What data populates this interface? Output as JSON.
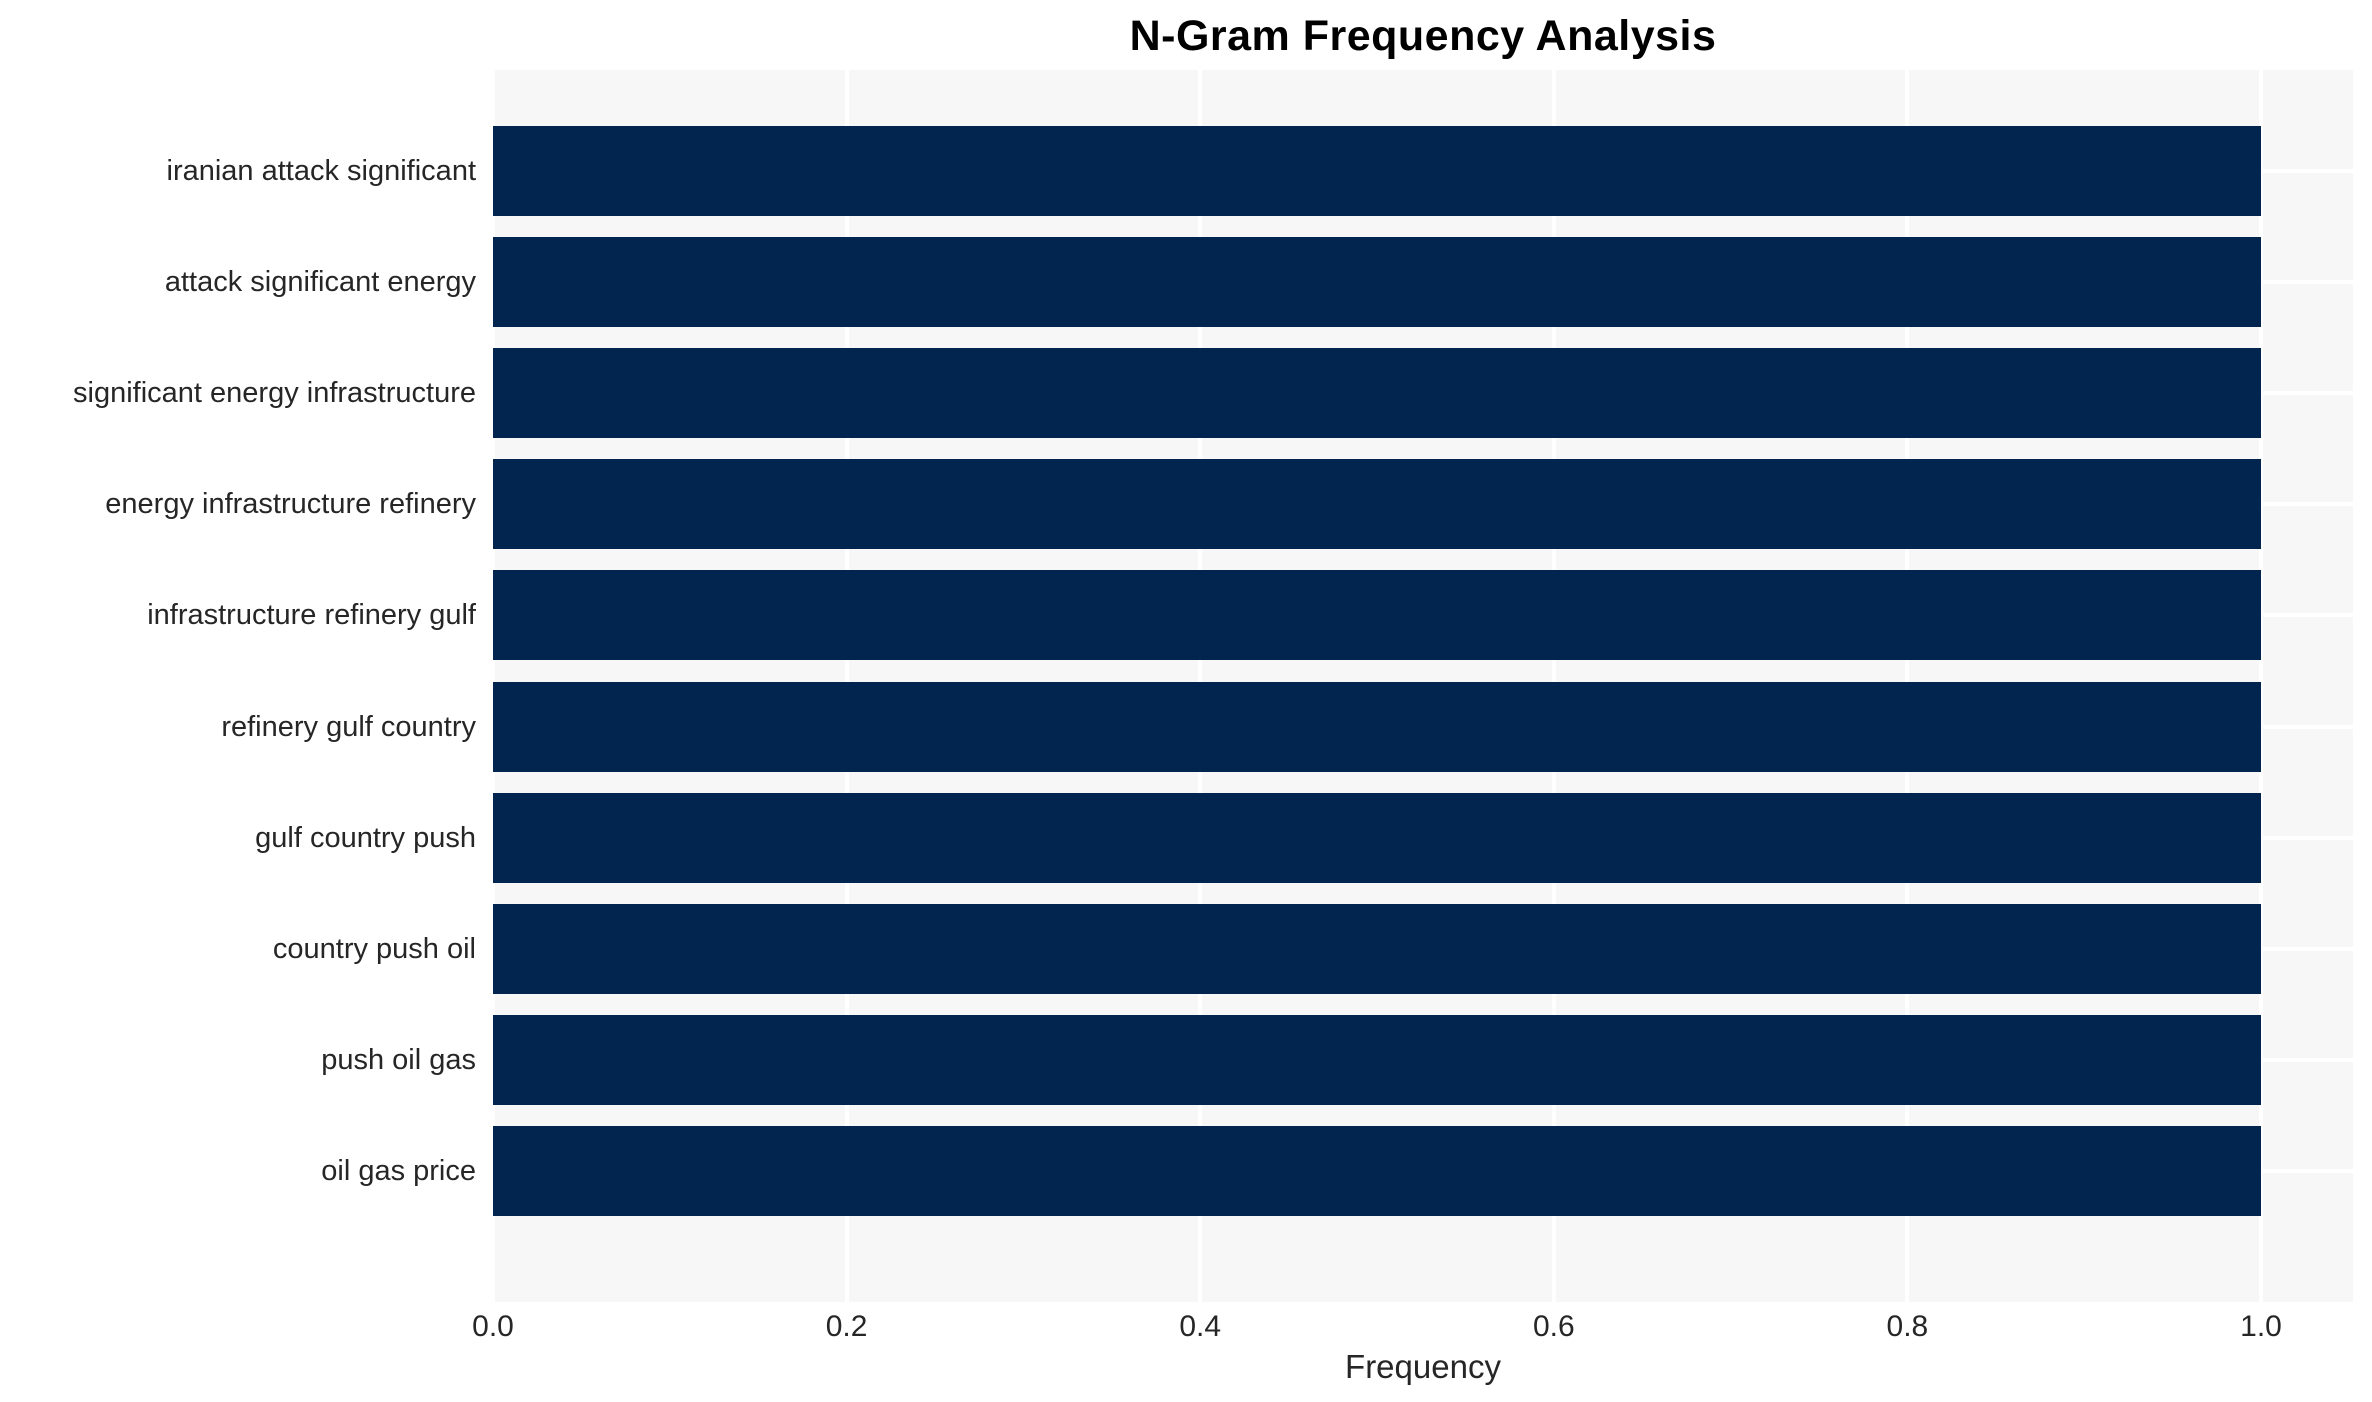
{
  "title": "N-Gram Frequency Analysis",
  "chart_data": {
    "type": "bar",
    "orientation": "horizontal",
    "title": "N-Gram Frequency Analysis",
    "categories": [
      "iranian attack significant",
      "attack significant energy",
      "significant energy infrastructure",
      "energy infrastructure refinery",
      "infrastructure refinery gulf",
      "refinery gulf country",
      "gulf country push",
      "country push oil",
      "push oil gas",
      "oil gas price"
    ],
    "values": [
      1.0,
      1.0,
      1.0,
      1.0,
      1.0,
      1.0,
      1.0,
      1.0,
      1.0,
      1.0
    ],
    "xlabel": "Frequency",
    "ylabel": "",
    "x_ticks": [
      0.0,
      0.2,
      0.4,
      0.6,
      0.8,
      1.0
    ],
    "x_tick_labels": [
      "0.0",
      "0.2",
      "0.4",
      "0.6",
      "0.8",
      "1.0"
    ],
    "xlim": [
      0.0,
      1.052
    ],
    "grid": true,
    "legend": false,
    "colors": {
      "bar": "#01254E",
      "plot_background": "#F7F7F7",
      "grid": "#FFFFFF",
      "tick_text": "#262626",
      "title_text": "#000000"
    }
  }
}
